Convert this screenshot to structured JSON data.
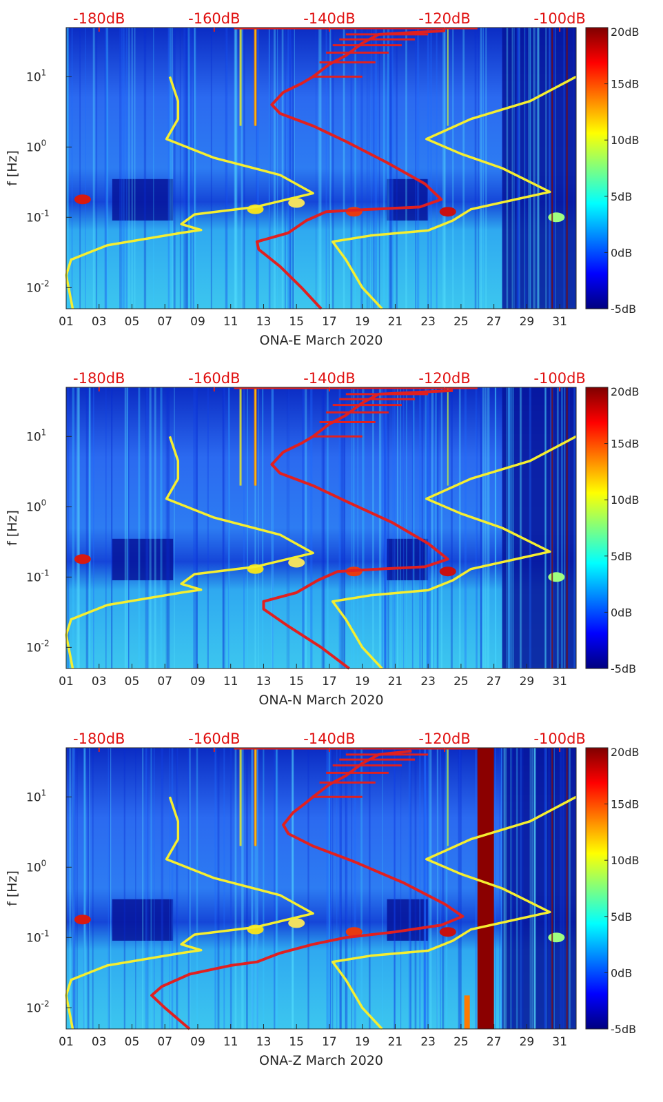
{
  "chart_data": [
    {
      "type": "heatmap",
      "title": "",
      "xlabel": "ONA-E March 2020",
      "ylabel": "f [Hz]",
      "x_tick_labels": [
        "01",
        "03",
        "05",
        "07",
        "09",
        "11",
        "13",
        "15",
        "17",
        "19",
        "21",
        "23",
        "25",
        "27",
        "29",
        "31"
      ],
      "x_ticks": [
        1,
        3,
        5,
        7,
        9,
        11,
        13,
        15,
        17,
        19,
        21,
        23,
        25,
        27,
        29,
        31
      ],
      "xlim": [
        1,
        32
      ],
      "y_scale": "log",
      "ylim": [
        0.005,
        50
      ],
      "y_tick_labels": [
        {
          "base": "10",
          "exp": "1"
        },
        {
          "base": "10",
          "exp": "0"
        },
        {
          "base": "10",
          "exp": "-1"
        },
        {
          "base": "10",
          "exp": "-2"
        }
      ],
      "y_ticks": [
        10,
        1,
        0.1,
        0.01
      ],
      "top_axis_labels": [
        "-180dB",
        "-160dB",
        "-140dB",
        "-120dB",
        "-100dB"
      ],
      "top_axis_days": [
        3,
        10,
        17,
        24,
        31
      ],
      "colorbar": {
        "labels": [
          "20dB",
          "15dB",
          "10dB",
          "5dB",
          "0dB",
          "-5dB"
        ],
        "values": [
          20,
          15,
          10,
          5,
          0,
          -5
        ],
        "colormap": "jet"
      },
      "yellow_curve": [
        [
          1.4,
          0.005
        ],
        [
          1.0,
          0.015
        ],
        [
          1.3,
          0.025
        ],
        [
          3.5,
          0.04
        ],
        [
          8,
          0.06
        ],
        [
          9.2,
          0.066
        ],
        [
          8,
          0.08
        ],
        [
          8.8,
          0.11
        ],
        [
          12.5,
          0.14
        ],
        [
          16,
          0.22
        ],
        [
          14,
          0.4
        ],
        [
          10,
          0.7
        ],
        [
          7.1,
          1.3
        ],
        [
          7.8,
          2.5
        ],
        [
          7.8,
          4.5
        ],
        [
          7.3,
          10
        ]
      ],
      "yellow_curve_right": [
        [
          20.2,
          0.005
        ],
        [
          19.0,
          0.01
        ],
        [
          18.0,
          0.025
        ],
        [
          17.2,
          0.045
        ],
        [
          19.5,
          0.055
        ],
        [
          23,
          0.065
        ],
        [
          24.5,
          0.09
        ],
        [
          25.6,
          0.13
        ],
        [
          30.4,
          0.23
        ],
        [
          27.5,
          0.5
        ],
        [
          25,
          0.8
        ],
        [
          22.9,
          1.3
        ],
        [
          25.6,
          2.5
        ],
        [
          29.2,
          4.5
        ],
        [
          32,
          10
        ]
      ],
      "red_curve": [
        [
          16.5,
          0.005
        ],
        [
          15.3,
          0.01
        ],
        [
          14.0,
          0.02
        ],
        [
          12.7,
          0.035
        ],
        [
          12.6,
          0.045
        ],
        [
          14.5,
          0.06
        ],
        [
          15.6,
          0.09
        ],
        [
          16.8,
          0.12
        ],
        [
          19.5,
          0.13
        ],
        [
          22.5,
          0.14
        ],
        [
          23.8,
          0.18
        ],
        [
          22.8,
          0.3
        ],
        [
          20.5,
          0.6
        ],
        [
          18,
          1.2
        ],
        [
          16,
          2
        ],
        [
          14,
          3
        ],
        [
          13.5,
          4
        ],
        [
          14.2,
          6
        ],
        [
          15.3,
          8
        ],
        [
          16,
          10
        ],
        [
          17,
          15
        ],
        [
          18,
          20
        ],
        [
          19,
          30
        ],
        [
          20,
          40
        ],
        [
          24,
          45
        ]
      ]
    },
    {
      "type": "heatmap",
      "title": "",
      "xlabel": "ONA-N March 2020",
      "ylabel": "f [Hz]",
      "x_tick_labels": [
        "01",
        "03",
        "05",
        "07",
        "09",
        "11",
        "13",
        "15",
        "17",
        "19",
        "21",
        "23",
        "25",
        "27",
        "29",
        "31"
      ],
      "x_ticks": [
        1,
        3,
        5,
        7,
        9,
        11,
        13,
        15,
        17,
        19,
        21,
        23,
        25,
        27,
        29,
        31
      ],
      "xlim": [
        1,
        32
      ],
      "y_scale": "log",
      "ylim": [
        0.005,
        50
      ],
      "y_tick_labels": [
        {
          "base": "10",
          "exp": "1"
        },
        {
          "base": "10",
          "exp": "0"
        },
        {
          "base": "10",
          "exp": "-1"
        },
        {
          "base": "10",
          "exp": "-2"
        }
      ],
      "y_ticks": [
        10,
        1,
        0.1,
        0.01
      ],
      "top_axis_labels": [
        "-180dB",
        "-160dB",
        "-140dB",
        "-120dB",
        "-100dB"
      ],
      "top_axis_days": [
        3,
        10,
        17,
        24,
        31
      ],
      "colorbar": {
        "labels": [
          "20dB",
          "15dB",
          "10dB",
          "5dB",
          "0dB",
          "-5dB"
        ],
        "values": [
          20,
          15,
          10,
          5,
          0,
          -5
        ],
        "colormap": "jet"
      },
      "yellow_curve": [
        [
          1.4,
          0.005
        ],
        [
          1.0,
          0.015
        ],
        [
          1.3,
          0.025
        ],
        [
          3.5,
          0.04
        ],
        [
          8,
          0.06
        ],
        [
          9.2,
          0.066
        ],
        [
          8,
          0.08
        ],
        [
          8.8,
          0.11
        ],
        [
          12.5,
          0.14
        ],
        [
          16,
          0.22
        ],
        [
          14,
          0.4
        ],
        [
          10,
          0.7
        ],
        [
          7.1,
          1.3
        ],
        [
          7.8,
          2.5
        ],
        [
          7.8,
          4.5
        ],
        [
          7.3,
          10
        ]
      ],
      "yellow_curve_right": [
        [
          20.2,
          0.005
        ],
        [
          19.0,
          0.01
        ],
        [
          18.0,
          0.025
        ],
        [
          17.2,
          0.045
        ],
        [
          19.5,
          0.055
        ],
        [
          23,
          0.065
        ],
        [
          24.5,
          0.09
        ],
        [
          25.6,
          0.13
        ],
        [
          30.4,
          0.23
        ],
        [
          27.5,
          0.5
        ],
        [
          25,
          0.8
        ],
        [
          22.9,
          1.3
        ],
        [
          25.6,
          2.5
        ],
        [
          29.2,
          4.5
        ],
        [
          32,
          10
        ]
      ],
      "red_curve": [
        [
          18.2,
          0.005
        ],
        [
          16.5,
          0.01
        ],
        [
          14.5,
          0.02
        ],
        [
          13.0,
          0.035
        ],
        [
          13.0,
          0.045
        ],
        [
          15,
          0.06
        ],
        [
          16.3,
          0.09
        ],
        [
          17.5,
          0.12
        ],
        [
          20,
          0.13
        ],
        [
          22.8,
          0.14
        ],
        [
          24.2,
          0.18
        ],
        [
          23,
          0.3
        ],
        [
          20.8,
          0.6
        ],
        [
          18,
          1.2
        ],
        [
          16,
          2
        ],
        [
          14,
          3
        ],
        [
          13.5,
          4
        ],
        [
          14.2,
          6
        ],
        [
          15.3,
          8
        ],
        [
          16,
          10
        ],
        [
          17,
          15
        ],
        [
          18,
          20
        ],
        [
          19,
          30
        ],
        [
          20,
          40
        ],
        [
          24.5,
          45
        ]
      ]
    },
    {
      "type": "heatmap",
      "title": "",
      "xlabel": "ONA-Z March 2020",
      "ylabel": "f [Hz]",
      "x_tick_labels": [
        "01",
        "03",
        "05",
        "07",
        "09",
        "11",
        "13",
        "15",
        "17",
        "19",
        "21",
        "23",
        "25",
        "27",
        "29",
        "31"
      ],
      "x_ticks": [
        1,
        3,
        5,
        7,
        9,
        11,
        13,
        15,
        17,
        19,
        21,
        23,
        25,
        27,
        29,
        31
      ],
      "xlim": [
        1,
        32
      ],
      "y_scale": "log",
      "ylim": [
        0.005,
        50
      ],
      "y_tick_labels": [
        {
          "base": "10",
          "exp": "1"
        },
        {
          "base": "10",
          "exp": "0"
        },
        {
          "base": "10",
          "exp": "-1"
        },
        {
          "base": "10",
          "exp": "-2"
        }
      ],
      "y_ticks": [
        10,
        1,
        0.1,
        0.01
      ],
      "top_axis_labels": [
        "-180dB",
        "-160dB",
        "-140dB",
        "-120dB",
        "-100dB"
      ],
      "top_axis_days": [
        3,
        10,
        17,
        24,
        31
      ],
      "colorbar": {
        "labels": [
          "20dB",
          "15dB",
          "10dB",
          "5dB",
          "0dB",
          "-5dB"
        ],
        "values": [
          20,
          15,
          10,
          5,
          0,
          -5
        ],
        "colormap": "jet"
      },
      "yellow_curve": [
        [
          1.4,
          0.005
        ],
        [
          1.0,
          0.015
        ],
        [
          1.3,
          0.025
        ],
        [
          3.5,
          0.04
        ],
        [
          8,
          0.06
        ],
        [
          9.2,
          0.066
        ],
        [
          8,
          0.08
        ],
        [
          8.8,
          0.11
        ],
        [
          12.5,
          0.14
        ],
        [
          16,
          0.22
        ],
        [
          14,
          0.4
        ],
        [
          10,
          0.7
        ],
        [
          7.1,
          1.3
        ],
        [
          7.8,
          2.5
        ],
        [
          7.8,
          4.5
        ],
        [
          7.3,
          10
        ]
      ],
      "yellow_curve_right": [
        [
          20.2,
          0.005
        ],
        [
          19.0,
          0.01
        ],
        [
          18.0,
          0.025
        ],
        [
          17.2,
          0.045
        ],
        [
          19.5,
          0.055
        ],
        [
          23,
          0.065
        ],
        [
          24.5,
          0.09
        ],
        [
          25.6,
          0.13
        ],
        [
          30.4,
          0.23
        ],
        [
          27.5,
          0.5
        ],
        [
          25,
          0.8
        ],
        [
          22.9,
          1.3
        ],
        [
          25.6,
          2.5
        ],
        [
          29.2,
          4.5
        ],
        [
          32,
          10
        ]
      ],
      "red_curve": [
        [
          8.5,
          0.005
        ],
        [
          7.0,
          0.01
        ],
        [
          6.2,
          0.015
        ],
        [
          6.8,
          0.02
        ],
        [
          8.5,
          0.03
        ],
        [
          11,
          0.04
        ],
        [
          12.6,
          0.045
        ],
        [
          14,
          0.06
        ],
        [
          16,
          0.08
        ],
        [
          18,
          0.1
        ],
        [
          21,
          0.12
        ],
        [
          23.8,
          0.15
        ],
        [
          25.1,
          0.2
        ],
        [
          24,
          0.3
        ],
        [
          21.5,
          0.6
        ],
        [
          18.5,
          1.2
        ],
        [
          16,
          2
        ],
        [
          14.5,
          3
        ],
        [
          14.2,
          4
        ],
        [
          14.8,
          6
        ],
        [
          15.5,
          8
        ],
        [
          16,
          10
        ],
        [
          17,
          15
        ],
        [
          18,
          20
        ],
        [
          19,
          30
        ],
        [
          20,
          40
        ],
        [
          22,
          45
        ]
      ],
      "saturated_band_days": [
        26.0,
        27.0
      ]
    }
  ]
}
